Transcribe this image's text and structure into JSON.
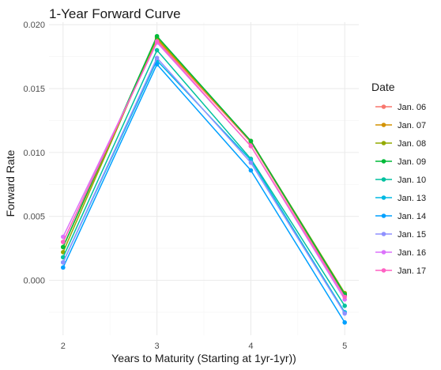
{
  "chart_data": {
    "type": "line",
    "title": "1-Year Forward Curve",
    "xlabel": "Years to Maturity (Starting at 1yr-1yr))",
    "ylabel": "Forward Rate",
    "x": [
      2,
      3,
      4,
      5
    ],
    "x_ticks": [
      "2",
      "3",
      "4",
      "5"
    ],
    "xlim": [
      1.85,
      5.15
    ],
    "y_ticks": [
      0.0,
      0.005,
      0.01,
      0.015,
      0.02
    ],
    "y_tick_labels": [
      "0.000",
      "0.005",
      "0.010",
      "0.015",
      "0.020"
    ],
    "ylim": [
      -0.0043,
      0.0202
    ],
    "grid": true,
    "legend": {
      "title": "Date",
      "position": "right"
    },
    "series": [
      {
        "name": "Jan. 06",
        "color": "#F8766D",
        "values": [
          0.003,
          0.0188,
          0.0108,
          -0.0012
        ]
      },
      {
        "name": "Jan. 07",
        "color": "#D39200",
        "values": [
          0.0026,
          0.0189,
          0.0109,
          -0.0011
        ]
      },
      {
        "name": "Jan. 08",
        "color": "#93AA00",
        "values": [
          0.0022,
          0.019,
          0.0109,
          -0.001
        ]
      },
      {
        "name": "Jan. 09",
        "color": "#00BA38",
        "values": [
          0.0026,
          0.0191,
          0.0109,
          -0.0011
        ]
      },
      {
        "name": "Jan. 10",
        "color": "#00C19F",
        "values": [
          0.0018,
          0.018,
          0.0095,
          -0.002
        ]
      },
      {
        "name": "Jan. 13",
        "color": "#00B9E3",
        "values": [
          0.0014,
          0.0172,
          0.0094,
          -0.0025
        ]
      },
      {
        "name": "Jan. 14",
        "color": "#00A0FF",
        "values": [
          0.001,
          0.0169,
          0.0086,
          -0.0033
        ]
      },
      {
        "name": "Jan. 15",
        "color": "#8F91FF",
        "values": [
          0.0014,
          0.0174,
          0.0092,
          -0.0026
        ]
      },
      {
        "name": "Jan. 16",
        "color": "#DB72FB",
        "values": [
          0.0034,
          0.0186,
          0.0105,
          -0.0015
        ]
      },
      {
        "name": "Jan. 17",
        "color": "#FF61C3",
        "values": [
          0.003,
          0.0187,
          0.0105,
          -0.0013
        ]
      }
    ]
  }
}
